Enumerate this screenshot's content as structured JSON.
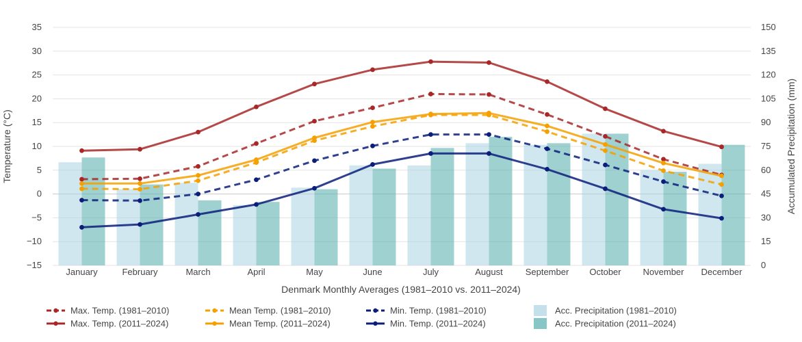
{
  "chart_data": {
    "type": "bar+line",
    "title": "",
    "xlabel": "Denmark Monthly Averages (1981–2010 vs. 2011–2024)",
    "ylabel_left": "Temperature (°C)",
    "ylabel_right": "Accumulated Precipitation (mm)",
    "ylim_left": [
      -15,
      35
    ],
    "ylim_right": [
      0,
      150
    ],
    "yticks_left": [
      -15,
      -10,
      -5,
      0,
      5,
      10,
      15,
      20,
      25,
      30,
      35
    ],
    "yticks_right": [
      0,
      15,
      30,
      45,
      60,
      75,
      90,
      105,
      120,
      135,
      150
    ],
    "grid": true,
    "legend_position": "bottom",
    "categories": [
      "January",
      "February",
      "March",
      "April",
      "May",
      "June",
      "July",
      "August",
      "September",
      "October",
      "November",
      "December"
    ],
    "bars": [
      {
        "name": "Acc. Precipitation (1981–2010)",
        "axis": "right",
        "color": "#a9d3e3",
        "opacity": 0.55,
        "values": [
          65,
          48,
          52,
          38,
          49,
          63,
          63,
          77,
          76,
          83,
          60,
          64
        ]
      },
      {
        "name": "Acc. Precipitation (2011–2024)",
        "axis": "right",
        "color": "#5fb3b3",
        "opacity": 0.6,
        "values": [
          68,
          51,
          41,
          40,
          48,
          61,
          74,
          81,
          77,
          83,
          59,
          76
        ]
      }
    ],
    "lines": [
      {
        "name": "Max. Temp. (1981–2010)",
        "axis": "left",
        "color": "#a82828",
        "dash": true,
        "values": [
          3.1,
          3.2,
          5.8,
          10.6,
          15.3,
          18.1,
          21.0,
          20.9,
          16.7,
          12.1,
          7.3,
          4.0
        ]
      },
      {
        "name": "Max. Temp. (2011–2024)",
        "axis": "left",
        "color": "#a82828",
        "dash": false,
        "values": [
          9.1,
          9.4,
          13.0,
          18.3,
          23.1,
          26.1,
          27.8,
          27.6,
          23.6,
          17.9,
          13.2,
          9.9
        ]
      },
      {
        "name": "Mean Temp. (1981–2010)",
        "axis": "left",
        "color": "#f5a000",
        "dash": true,
        "values": [
          1.1,
          1.0,
          2.8,
          6.6,
          11.2,
          14.2,
          16.6,
          16.6,
          13.1,
          9.1,
          4.9,
          2.0
        ]
      },
      {
        "name": "Mean Temp. (2011–2024)",
        "axis": "left",
        "color": "#f5a000",
        "dash": false,
        "values": [
          2.2,
          2.2,
          3.9,
          7.2,
          11.8,
          15.1,
          16.8,
          17.0,
          14.3,
          10.4,
          6.5,
          3.8
        ]
      },
      {
        "name": "Min. Temp. (1981–2010)",
        "axis": "left",
        "color": "#0a1e7a",
        "dash": true,
        "values": [
          -1.3,
          -1.4,
          0.0,
          3.0,
          7.0,
          10.1,
          12.5,
          12.5,
          9.5,
          6.1,
          2.6,
          -0.4
        ]
      },
      {
        "name": "Min. Temp. (2011–2024)",
        "axis": "left",
        "color": "#0a1e7a",
        "dash": false,
        "values": [
          -7.0,
          -6.4,
          -4.3,
          -2.2,
          1.2,
          6.2,
          8.5,
          8.5,
          5.2,
          1.1,
          -3.2,
          -5.1
        ]
      }
    ],
    "legend_order": [
      "Max. Temp. (1981–2010)",
      "Mean Temp. (1981–2010)",
      "Min. Temp. (1981–2010)",
      "Acc. Precipitation (1981–2010)",
      "Max. Temp. (2011–2024)",
      "Mean Temp. (2011–2024)",
      "Min. Temp. (2011–2024)",
      "Acc. Precipitation (2011–2024)"
    ]
  }
}
